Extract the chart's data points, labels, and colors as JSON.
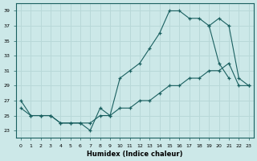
{
  "xlabel": "Humidex (Indice chaleur)",
  "bg_color": "#cce8e8",
  "grid_color": "#b8d8d8",
  "line_color": "#1a6060",
  "ylim": [
    22,
    40
  ],
  "yticks": [
    23,
    25,
    27,
    29,
    31,
    33,
    35,
    37,
    39
  ],
  "xlim": [
    0,
    23
  ],
  "line1_x": [
    0,
    1,
    2,
    3,
    4,
    5,
    6,
    7,
    8,
    9,
    10,
    11,
    12,
    13,
    14,
    15,
    16,
    17,
    18,
    19,
    20,
    21
  ],
  "line1_y": [
    27,
    25,
    25,
    25,
    24,
    24,
    24,
    23,
    26,
    25,
    30,
    31,
    32,
    34,
    36,
    39,
    39,
    38,
    38,
    37,
    32,
    30
  ],
  "line2_x": [
    19,
    20,
    21,
    22,
    23
  ],
  "line2_y": [
    37,
    38,
    37,
    30,
    29
  ],
  "line3_x": [
    0,
    1,
    2,
    3,
    4,
    5,
    6,
    7,
    8,
    9,
    10,
    11,
    12,
    13,
    14,
    15,
    16,
    17,
    18,
    19,
    20,
    21,
    22,
    23
  ],
  "line3_y": [
    26,
    25,
    25,
    25,
    24,
    24,
    24,
    24,
    25,
    25,
    26,
    26,
    27,
    27,
    28,
    29,
    29,
    30,
    30,
    31,
    31,
    32,
    29,
    29
  ]
}
